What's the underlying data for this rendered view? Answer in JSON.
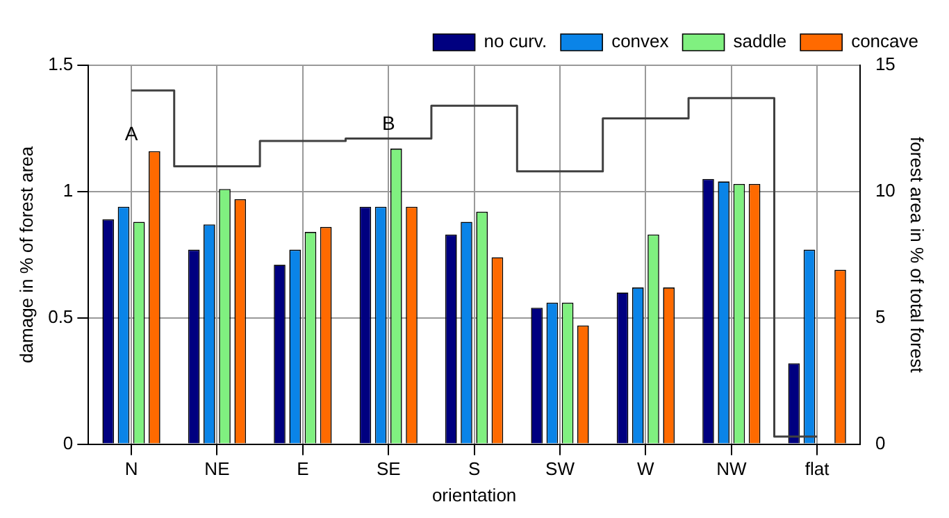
{
  "chart_data": {
    "type": "bar",
    "xlabel": "orientation",
    "ylabel": "damage in % of forest area",
    "y2label": "forest area in % of total forest",
    "categories": [
      "N",
      "NE",
      "E",
      "SE",
      "S",
      "SW",
      "W",
      "NW",
      "flat"
    ],
    "series": [
      {
        "name": "no curv.",
        "color": "#000080",
        "values": [
          0.89,
          0.77,
          0.71,
          0.94,
          0.83,
          0.54,
          0.6,
          1.05,
          0.32
        ]
      },
      {
        "name": "convex",
        "color": "#0a84e8",
        "values": [
          0.94,
          0.87,
          0.77,
          0.94,
          0.88,
          0.56,
          0.62,
          1.04,
          0.77
        ]
      },
      {
        "name": "saddle",
        "color": "#80f080",
        "values": [
          0.88,
          1.01,
          0.84,
          1.17,
          0.92,
          0.56,
          0.83,
          1.03,
          null
        ]
      },
      {
        "name": "concave",
        "color": "#ff6a00",
        "values": [
          1.16,
          0.97,
          0.86,
          0.94,
          0.74,
          0.47,
          0.62,
          1.03,
          0.69
        ]
      },
      {
        "type": "step",
        "axis": "y2",
        "color": "#404040",
        "values": [
          14,
          11,
          12,
          12.1,
          13.4,
          10.8,
          12.9,
          13.7,
          0.3
        ]
      }
    ],
    "ylim": [
      0,
      1.5
    ],
    "yticks": [
      0,
      0.5,
      1,
      1.5
    ],
    "y2lim": [
      0,
      15
    ],
    "y2ticks": [
      0,
      5,
      10,
      15
    ],
    "annotations": [
      "A",
      "B"
    ],
    "grid": true,
    "legend": "top right"
  }
}
